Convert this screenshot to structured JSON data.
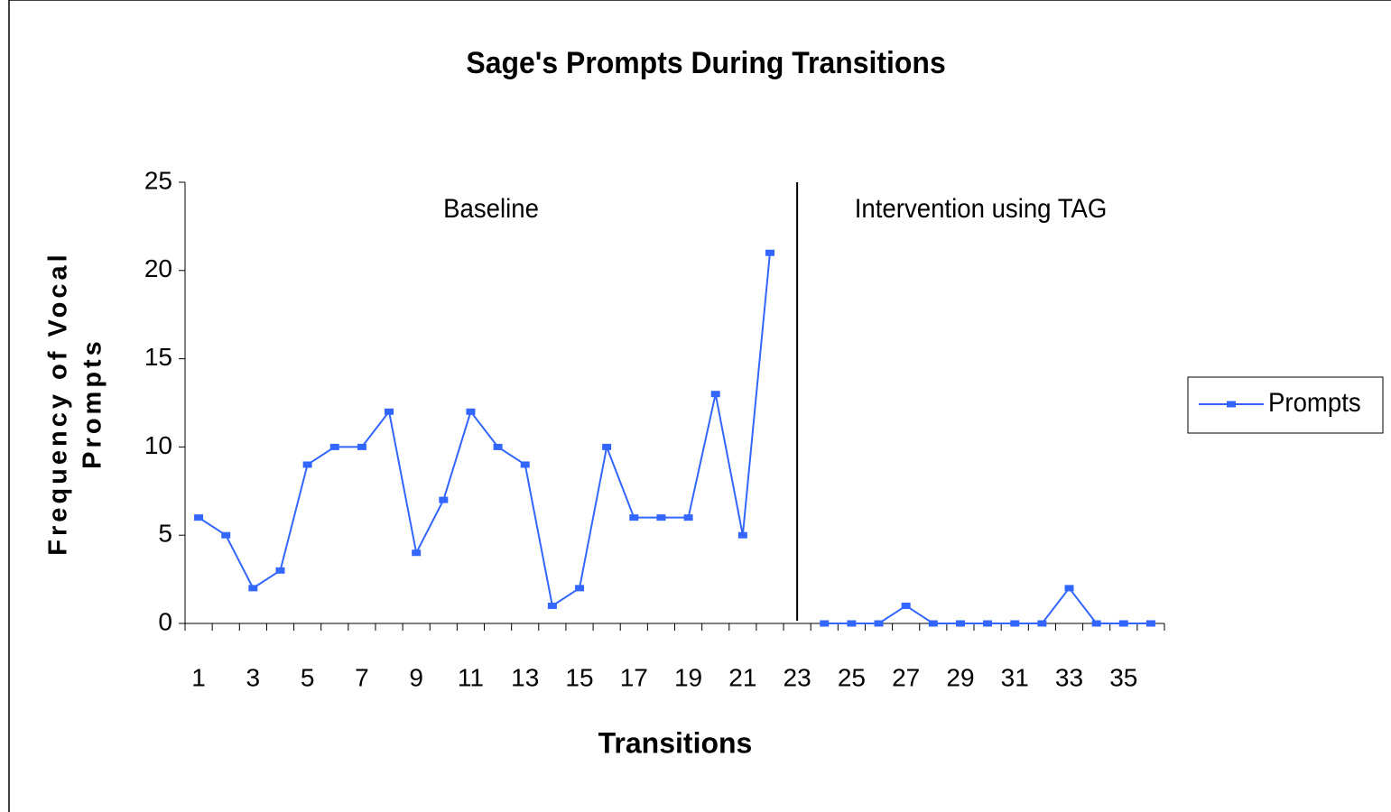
{
  "chart_data": {
    "type": "line",
    "title": "Sage's Prompts During Transitions",
    "xlabel": "Transitions",
    "ylabel_lines": [
      "Frequency of Vocal",
      "Prompts"
    ],
    "annotations": [
      "Baseline",
      "Intervention using TAG"
    ],
    "categories": [
      "1",
      null,
      "3",
      null,
      "5",
      null,
      "7",
      null,
      "9",
      null,
      "11",
      null,
      "13",
      null,
      "15",
      null,
      "17",
      null,
      "19",
      null,
      "21",
      null,
      "23",
      null,
      "25",
      null,
      "27",
      null,
      "29",
      null,
      "31",
      null,
      "33",
      null,
      "35",
      null
    ],
    "series": [
      {
        "name": "Prompts",
        "color": "#3366ff",
        "values": [
          6,
          5,
          2,
          3,
          9,
          10,
          10,
          12,
          4,
          7,
          12,
          10,
          9,
          1,
          2,
          10,
          6,
          6,
          6,
          13,
          5,
          21,
          null,
          0,
          0,
          0,
          1,
          0,
          0,
          0,
          0,
          0,
          2,
          0,
          0,
          0
        ]
      }
    ],
    "ylim": [
      0,
      25
    ],
    "yticks": [
      0,
      5,
      10,
      15,
      20,
      25
    ],
    "grid": false,
    "legend": "right"
  }
}
